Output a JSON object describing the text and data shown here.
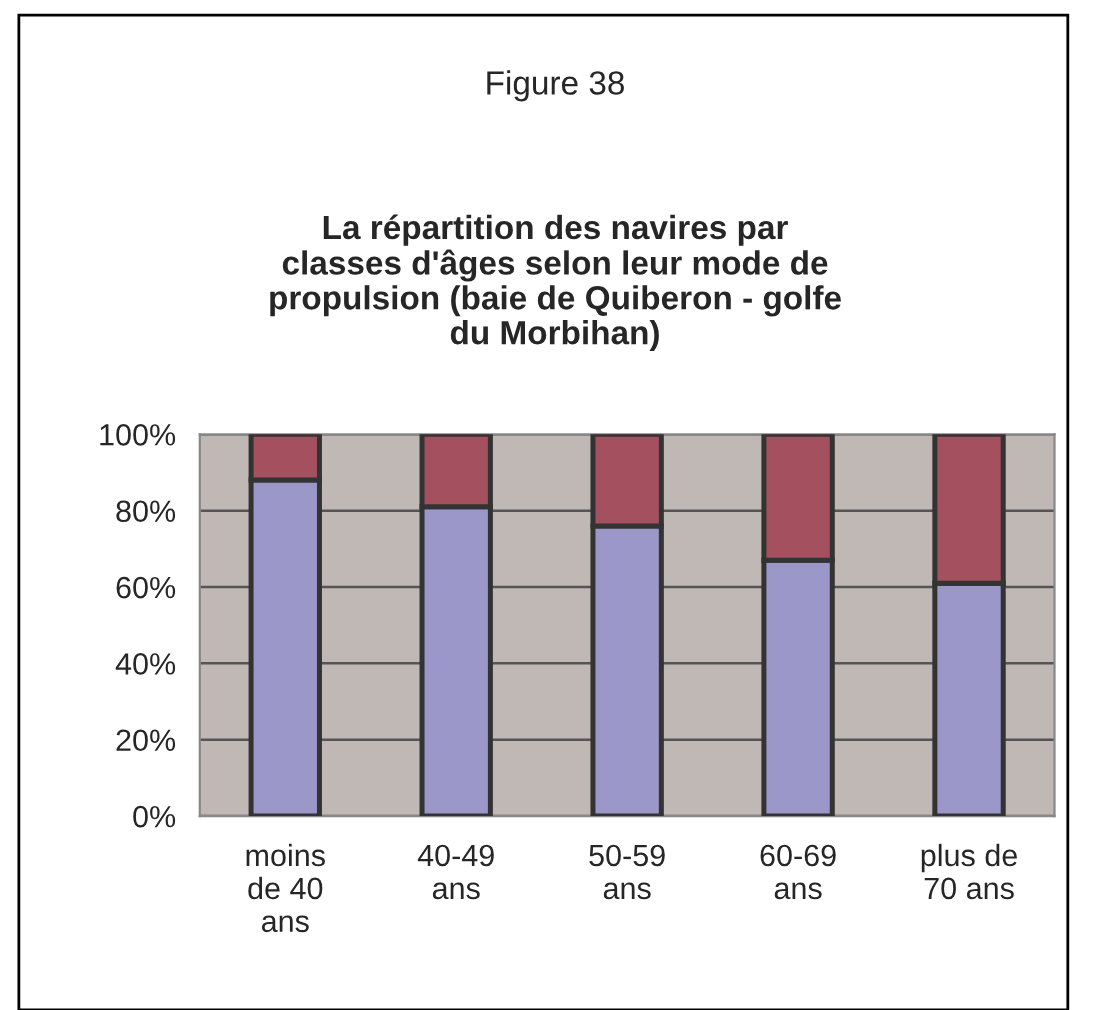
{
  "chart_data": {
    "type": "bar",
    "title": "Figure 38",
    "subtitle": "La répartition des navires par\nclasses d'âges selon leur mode de\npropulsion (baie de Quiberon - golfe\ndu Morbihan)",
    "categories": [
      "moins\nde 40\nans",
      "40-49\nans",
      "50-59\nans",
      "60-69\nans",
      "plus de\n70 ans"
    ],
    "stacked": true,
    "series": [
      {
        "color": "#9b97c9",
        "values": [
          88,
          81,
          76,
          67,
          61
        ]
      },
      {
        "color": "#a5505f",
        "values": [
          12,
          19,
          24,
          33,
          39
        ]
      }
    ],
    "ylim": [
      0,
      100
    ],
    "yticks": [
      {
        "value": 0,
        "label": "0%"
      },
      {
        "value": 20,
        "label": "20%"
      },
      {
        "value": 40,
        "label": "40%"
      },
      {
        "value": 60,
        "label": "60%"
      },
      {
        "value": 80,
        "label": "80%"
      },
      {
        "value": 100,
        "label": "100%"
      }
    ],
    "grid": "y",
    "legend": false
  }
}
